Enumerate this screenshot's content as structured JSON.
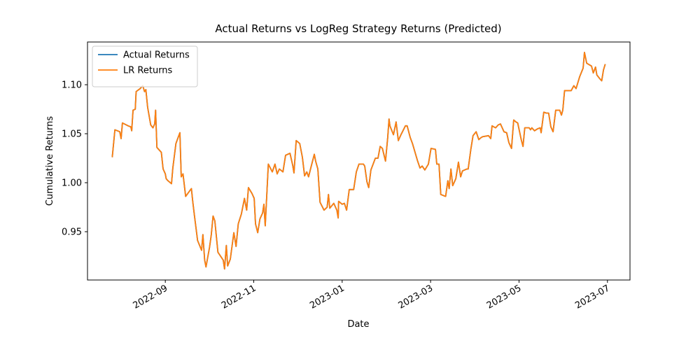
{
  "chart_data": {
    "type": "line",
    "title": "Actual Returns vs LogReg Strategy Returns (Predicted)",
    "xlabel": "Date",
    "ylabel": "Cumulative Returns",
    "legend": "upper left",
    "xlim": [
      6.24,
      18.51
    ],
    "xticks": [
      {
        "value": 8,
        "label": "2022-09"
      },
      {
        "value": 10,
        "label": "2022-11"
      },
      {
        "value": 12,
        "label": "2023-01"
      },
      {
        "value": 14,
        "label": "2023-03"
      },
      {
        "value": 16,
        "label": "2023-05"
      },
      {
        "value": 18,
        "label": "2023-07"
      }
    ],
    "ylim": [
      0.9007,
      1.1436
    ],
    "yticks": [
      0.95,
      {
        "value": 1.0,
        "label": "1.00"
      },
      1.05,
      {
        "value": 1.1,
        "label": "1.10"
      }
    ],
    "x": [
      6.8,
      6.86,
      6.97,
      7.0,
      7.03,
      7.16,
      7.22,
      7.24,
      7.27,
      7.32,
      7.34,
      7.43,
      7.49,
      7.53,
      7.56,
      7.6,
      7.67,
      7.72,
      7.76,
      7.78,
      7.81,
      7.91,
      7.95,
      8.0,
      8.02,
      8.06,
      8.14,
      8.17,
      8.24,
      8.28,
      8.33,
      8.36,
      8.4,
      8.46,
      8.54,
      8.59,
      8.62,
      8.66,
      8.73,
      8.82,
      8.85,
      8.89,
      8.92,
      9.0,
      9.04,
      9.08,
      9.12,
      9.19,
      9.31,
      9.34,
      9.38,
      9.41,
      9.47,
      9.55,
      9.6,
      9.65,
      9.72,
      9.79,
      9.84,
      9.88,
      9.96,
      10.01,
      10.04,
      10.09,
      10.14,
      10.2,
      10.23,
      10.26,
      10.33,
      10.42,
      10.48,
      10.53,
      10.58,
      10.66,
      10.72,
      10.82,
      10.88,
      10.91,
      10.96,
      11.04,
      11.1,
      11.15,
      11.2,
      11.24,
      11.29,
      11.37,
      11.4,
      11.45,
      11.5,
      11.59,
      11.66,
      11.69,
      11.72,
      11.81,
      11.88,
      11.91,
      11.92,
      12.0,
      12.05,
      12.1,
      12.16,
      12.26,
      12.32,
      12.38,
      12.48,
      12.51,
      12.56,
      12.6,
      12.65,
      12.75,
      12.81,
      12.86,
      12.91,
      12.98,
      13.03,
      13.06,
      13.08,
      13.16,
      13.22,
      13.27,
      13.33,
      13.43,
      13.47,
      13.54,
      13.59,
      13.7,
      13.76,
      13.81,
      13.87,
      13.95,
      14.01,
      14.11,
      14.14,
      14.19,
      14.23,
      14.34,
      14.39,
      14.42,
      14.46,
      14.5,
      14.57,
      14.63,
      14.68,
      14.72,
      14.77,
      14.82,
      14.85,
      14.91,
      14.96,
      15.03,
      15.09,
      15.14,
      15.18,
      15.31,
      15.36,
      15.39,
      15.47,
      15.53,
      15.58,
      15.63,
      15.66,
      15.72,
      15.77,
      15.83,
      15.88,
      15.93,
      15.97,
      16.05,
      16.09,
      16.13,
      16.23,
      16.26,
      16.29,
      16.35,
      16.42,
      16.48,
      16.5,
      16.56,
      16.62,
      16.67,
      16.72,
      16.77,
      16.83,
      16.92,
      16.96,
      16.99,
      17.03,
      17.1,
      17.18,
      17.24,
      17.29,
      17.37,
      17.45,
      17.48,
      17.53,
      17.64,
      17.68,
      17.73,
      17.76,
      17.83,
      17.87,
      17.91,
      17.95
    ],
    "series": [
      {
        "name": "Actual Returns",
        "color": "#1f77b4",
        "values": [
          1.026,
          1.054,
          1.052,
          1.045,
          1.061,
          1.058,
          1.057,
          1.053,
          1.074,
          1.075,
          1.093,
          1.096,
          1.099,
          1.093,
          1.095,
          1.077,
          1.059,
          1.056,
          1.06,
          1.074,
          1.036,
          1.031,
          1.014,
          1.009,
          1.004,
          1.002,
          0.999,
          1.015,
          1.04,
          1.045,
          1.051,
          1.006,
          1.009,
          0.986,
          0.991,
          0.994,
          0.981,
          0.966,
          0.941,
          0.931,
          0.947,
          0.921,
          0.914,
          0.934,
          0.947,
          0.966,
          0.961,
          0.929,
          0.921,
          0.912,
          0.936,
          0.915,
          0.922,
          0.949,
          0.935,
          0.958,
          0.968,
          0.984,
          0.972,
          0.995,
          0.989,
          0.984,
          0.958,
          0.949,
          0.963,
          0.969,
          0.978,
          0.956,
          1.019,
          1.011,
          1.019,
          1.009,
          1.014,
          1.011,
          1.028,
          1.03,
          1.018,
          1.01,
          1.043,
          1.04,
          1.026,
          1.007,
          1.011,
          1.006,
          1.015,
          1.029,
          1.022,
          1.014,
          0.98,
          0.972,
          0.975,
          0.988,
          0.974,
          0.979,
          0.972,
          0.964,
          0.981,
          0.978,
          0.979,
          0.972,
          0.993,
          0.993,
          1.011,
          1.019,
          1.019,
          1.017,
          1.001,
          0.995,
          1.013,
          1.025,
          1.025,
          1.037,
          1.035,
          1.022,
          1.046,
          1.065,
          1.058,
          1.049,
          1.062,
          1.043,
          1.049,
          1.058,
          1.058,
          1.046,
          1.04,
          1.023,
          1.015,
          1.017,
          1.013,
          1.019,
          1.035,
          1.034,
          1.019,
          1.019,
          0.988,
          0.986,
          1.002,
          0.994,
          1.014,
          0.997,
          1.004,
          1.021,
          1.006,
          1.012,
          1.013,
          1.014,
          1.014,
          1.034,
          1.048,
          1.052,
          1.044,
          1.046,
          1.047,
          1.048,
          1.045,
          1.058,
          1.056,
          1.059,
          1.06,
          1.055,
          1.052,
          1.051,
          1.041,
          1.035,
          1.064,
          1.062,
          1.061,
          1.044,
          1.037,
          1.056,
          1.056,
          1.054,
          1.056,
          1.053,
          1.055,
          1.056,
          1.051,
          1.072,
          1.071,
          1.071,
          1.057,
          1.052,
          1.074,
          1.074,
          1.069,
          1.074,
          1.094,
          1.094,
          1.094,
          1.099,
          1.096,
          1.108,
          1.117,
          1.133,
          1.122,
          1.119,
          1.112,
          1.118,
          1.11,
          1.106,
          1.104,
          1.115,
          1.121
        ]
      },
      {
        "name": "LR Returns",
        "color": "#ff7f0e",
        "values": [
          1.026,
          1.054,
          1.052,
          1.045,
          1.061,
          1.058,
          1.057,
          1.053,
          1.074,
          1.075,
          1.093,
          1.096,
          1.099,
          1.093,
          1.095,
          1.077,
          1.059,
          1.056,
          1.06,
          1.074,
          1.036,
          1.031,
          1.014,
          1.009,
          1.004,
          1.002,
          0.999,
          1.015,
          1.04,
          1.045,
          1.051,
          1.006,
          1.009,
          0.986,
          0.991,
          0.994,
          0.981,
          0.966,
          0.941,
          0.931,
          0.947,
          0.921,
          0.914,
          0.934,
          0.947,
          0.966,
          0.961,
          0.929,
          0.921,
          0.912,
          0.936,
          0.915,
          0.922,
          0.949,
          0.935,
          0.958,
          0.968,
          0.984,
          0.972,
          0.995,
          0.989,
          0.984,
          0.958,
          0.949,
          0.963,
          0.969,
          0.978,
          0.956,
          1.019,
          1.011,
          1.019,
          1.009,
          1.014,
          1.011,
          1.028,
          1.03,
          1.018,
          1.01,
          1.043,
          1.04,
          1.026,
          1.007,
          1.011,
          1.006,
          1.015,
          1.029,
          1.022,
          1.014,
          0.98,
          0.972,
          0.975,
          0.988,
          0.974,
          0.979,
          0.972,
          0.964,
          0.981,
          0.978,
          0.979,
          0.972,
          0.993,
          0.993,
          1.011,
          1.019,
          1.019,
          1.017,
          1.001,
          0.995,
          1.013,
          1.025,
          1.025,
          1.037,
          1.035,
          1.022,
          1.046,
          1.065,
          1.058,
          1.049,
          1.062,
          1.043,
          1.049,
          1.058,
          1.058,
          1.046,
          1.04,
          1.023,
          1.015,
          1.017,
          1.013,
          1.019,
          1.035,
          1.034,
          1.019,
          1.019,
          0.988,
          0.986,
          1.002,
          0.994,
          1.014,
          0.997,
          1.004,
          1.021,
          1.006,
          1.012,
          1.013,
          1.014,
          1.014,
          1.034,
          1.048,
          1.052,
          1.044,
          1.046,
          1.047,
          1.048,
          1.045,
          1.058,
          1.056,
          1.059,
          1.06,
          1.055,
          1.052,
          1.051,
          1.041,
          1.035,
          1.064,
          1.062,
          1.061,
          1.044,
          1.037,
          1.056,
          1.056,
          1.054,
          1.056,
          1.053,
          1.055,
          1.056,
          1.051,
          1.072,
          1.071,
          1.071,
          1.057,
          1.052,
          1.074,
          1.074,
          1.069,
          1.074,
          1.094,
          1.094,
          1.094,
          1.099,
          1.096,
          1.108,
          1.117,
          1.133,
          1.122,
          1.119,
          1.112,
          1.118,
          1.11,
          1.106,
          1.104,
          1.115,
          1.121
        ]
      }
    ]
  }
}
